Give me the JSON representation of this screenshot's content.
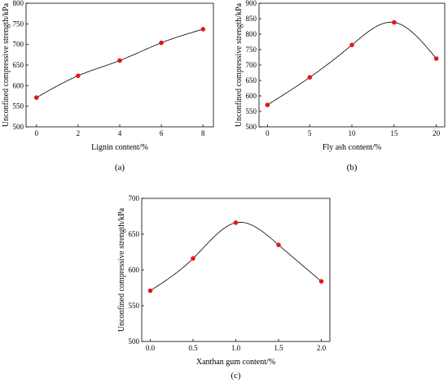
{
  "chart_data": [
    {
      "type": "line",
      "panel_label": "(a)",
      "xlabel": "Lignin content/%",
      "ylabel": "Unconfined compressive strength/kPa",
      "xlim": [
        -0.5,
        8.5
      ],
      "ylim": [
        500,
        800
      ],
      "x_ticks": [
        0,
        2,
        4,
        6,
        8
      ],
      "x_tick_labels": [
        "0",
        "2",
        "4",
        "6",
        "8"
      ],
      "y_ticks": [
        500,
        550,
        600,
        650,
        700,
        750,
        800
      ],
      "y_tick_labels": [
        "500",
        "550",
        "600",
        "650",
        "700",
        "750",
        "800"
      ],
      "x": [
        0,
        2,
        4,
        6,
        8
      ],
      "series": [
        {
          "values": [
            571,
            624,
            661,
            704,
            737
          ]
        }
      ],
      "marker_color": "#e8141c",
      "line_color": "#000000",
      "grid": false
    },
    {
      "type": "line",
      "panel_label": "(b)",
      "xlabel": "Fly ash content/%",
      "ylabel": "Unconfined compressive strength/kPa",
      "xlim": [
        -1,
        21
      ],
      "ylim": [
        500,
        900
      ],
      "x_ticks": [
        0,
        5,
        10,
        15,
        20
      ],
      "x_tick_labels": [
        "0",
        "5",
        "10",
        "15",
        "20"
      ],
      "y_ticks": [
        500,
        550,
        600,
        650,
        700,
        750,
        800,
        850,
        900
      ],
      "y_tick_labels": [
        "500",
        "550",
        "600",
        "650",
        "700",
        "750",
        "800",
        "850",
        "900"
      ],
      "x": [
        0,
        5,
        10,
        15,
        20
      ],
      "series": [
        {
          "values": [
            571,
            660,
            765,
            838,
            721
          ]
        }
      ],
      "marker_color": "#e8141c",
      "line_color": "#000000",
      "grid": false
    },
    {
      "type": "line",
      "panel_label": "(c)",
      "xlabel": "Xanthan gum content/%",
      "ylabel": "Unconfined compressive strength/kPa",
      "xlim": [
        -0.1,
        2.1
      ],
      "ylim": [
        500,
        700
      ],
      "x_ticks": [
        0,
        0.5,
        1.0,
        1.5,
        2.0
      ],
      "x_tick_labels": [
        "0.0",
        "0.5",
        "1.0",
        "1.5",
        "2.0"
      ],
      "y_ticks": [
        500,
        550,
        600,
        650,
        700
      ],
      "y_tick_labels": [
        "500",
        "550",
        "600",
        "650",
        "700"
      ],
      "x": [
        0,
        0.5,
        1.0,
        1.5,
        2.0
      ],
      "series": [
        {
          "values": [
            571,
            616,
            666,
            635,
            584
          ]
        }
      ],
      "marker_color": "#e8141c",
      "line_color": "#000000",
      "grid": false
    }
  ]
}
